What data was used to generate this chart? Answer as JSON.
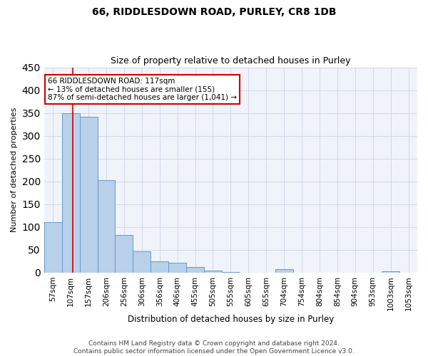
{
  "title": "66, RIDDLESDOWN ROAD, PURLEY, CR8 1DB",
  "subtitle": "Size of property relative to detached houses in Purley",
  "xlabel": "Distribution of detached houses by size in Purley",
  "ylabel": "Number of detached properties",
  "bar_labels": [
    "57sqm",
    "107sqm",
    "157sqm",
    "206sqm",
    "256sqm",
    "306sqm",
    "356sqm",
    "406sqm",
    "455sqm",
    "505sqm",
    "555sqm",
    "605sqm",
    "655sqm",
    "704sqm",
    "754sqm",
    "804sqm",
    "854sqm",
    "904sqm",
    "953sqm",
    "1003sqm",
    "1053sqm"
  ],
  "bar_values": [
    110,
    350,
    342,
    203,
    83,
    47,
    25,
    22,
    12,
    5,
    2,
    0,
    0,
    8,
    0,
    0,
    0,
    0,
    0,
    3,
    0
  ],
  "bar_color": "#b8d0ea",
  "bar_edge_color": "#6699cc",
  "vline_color": "#cc0000",
  "vline_x": 1.1,
  "annotation_line1": "66 RIDDLESDOWN ROAD: 117sqm",
  "annotation_line2": "← 13% of detached houses are smaller (155)",
  "annotation_line3": "87% of semi-detached houses are larger (1,041) →",
  "annotation_box_color": "white",
  "annotation_box_edge": "#cc0000",
  "ylim": [
    0,
    450
  ],
  "yticks": [
    0,
    50,
    100,
    150,
    200,
    250,
    300,
    350,
    400,
    450
  ],
  "title_fontsize": 10,
  "subtitle_fontsize": 9,
  "tick_fontsize": 7.5,
  "ylabel_fontsize": 8,
  "xlabel_fontsize": 8.5,
  "footer_text": "Contains HM Land Registry data © Crown copyright and database right 2024.\nContains public sector information licensed under the Open Government Licence v3.0.",
  "footer_fontsize": 6.5,
  "bg_color": "#f0f4fa"
}
